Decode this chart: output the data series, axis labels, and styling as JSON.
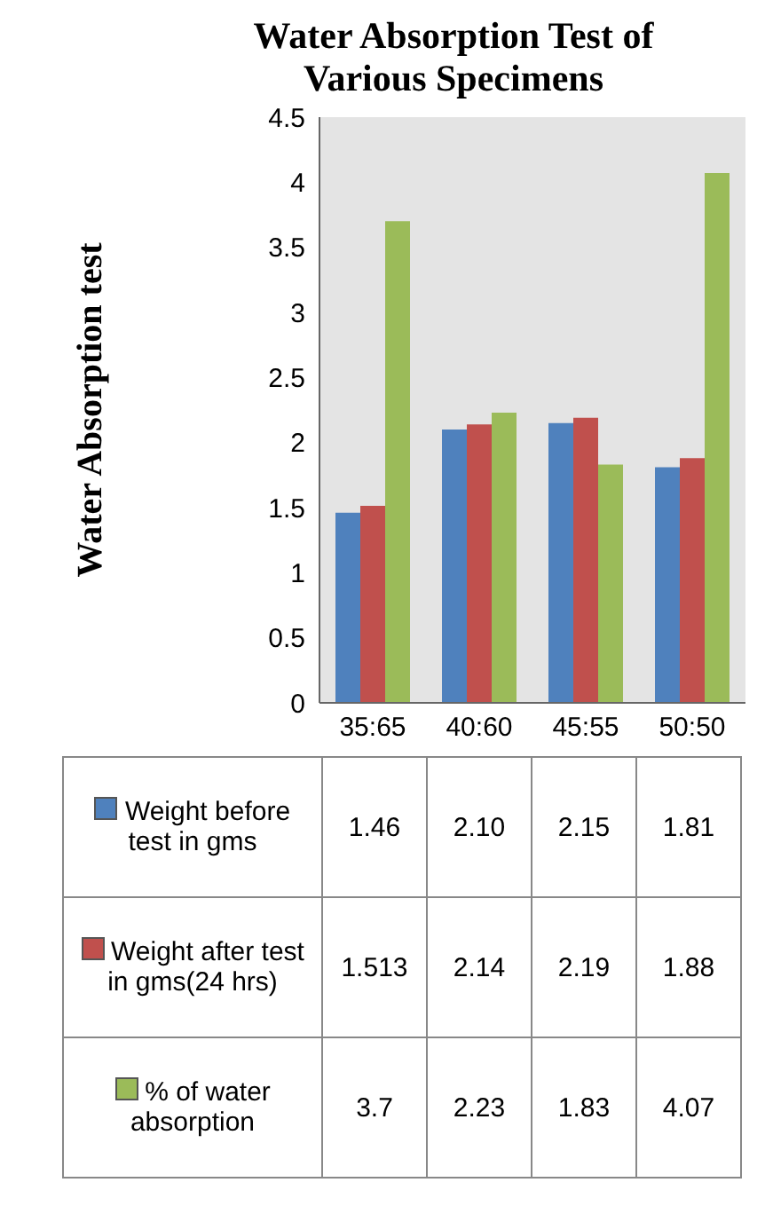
{
  "chart_data": {
    "type": "bar",
    "title": "Water Absorption Test of Various Specimens",
    "ylabel": "Water  Absorption test",
    "categories": [
      "35:65",
      "40:60",
      "45:55",
      "50:50"
    ],
    "series": [
      {
        "name": "Weight before test in gms",
        "color": "#4f81bd",
        "values": [
          1.46,
          2.1,
          2.15,
          1.81
        ],
        "value_labels": [
          "1.46",
          "2.10",
          "2.15",
          "1.81"
        ]
      },
      {
        "name": "Weight after test in gms(24 hrs)",
        "color": "#c0504d",
        "values": [
          1.513,
          2.14,
          2.19,
          1.88
        ],
        "value_labels": [
          "1.513",
          "2.14",
          "2.19",
          "1.88"
        ]
      },
      {
        "name": "% of water absorption",
        "color": "#9bbb59",
        "values": [
          3.7,
          2.23,
          1.83,
          4.07
        ],
        "value_labels": [
          "3.7",
          "2.23",
          "1.83",
          "4.07"
        ]
      }
    ],
    "ylim": [
      0,
      4.5
    ],
    "yticks": [
      0,
      0.5,
      1,
      1.5,
      2,
      2.5,
      3,
      3.5,
      4,
      4.5
    ],
    "legend": "bottom"
  }
}
